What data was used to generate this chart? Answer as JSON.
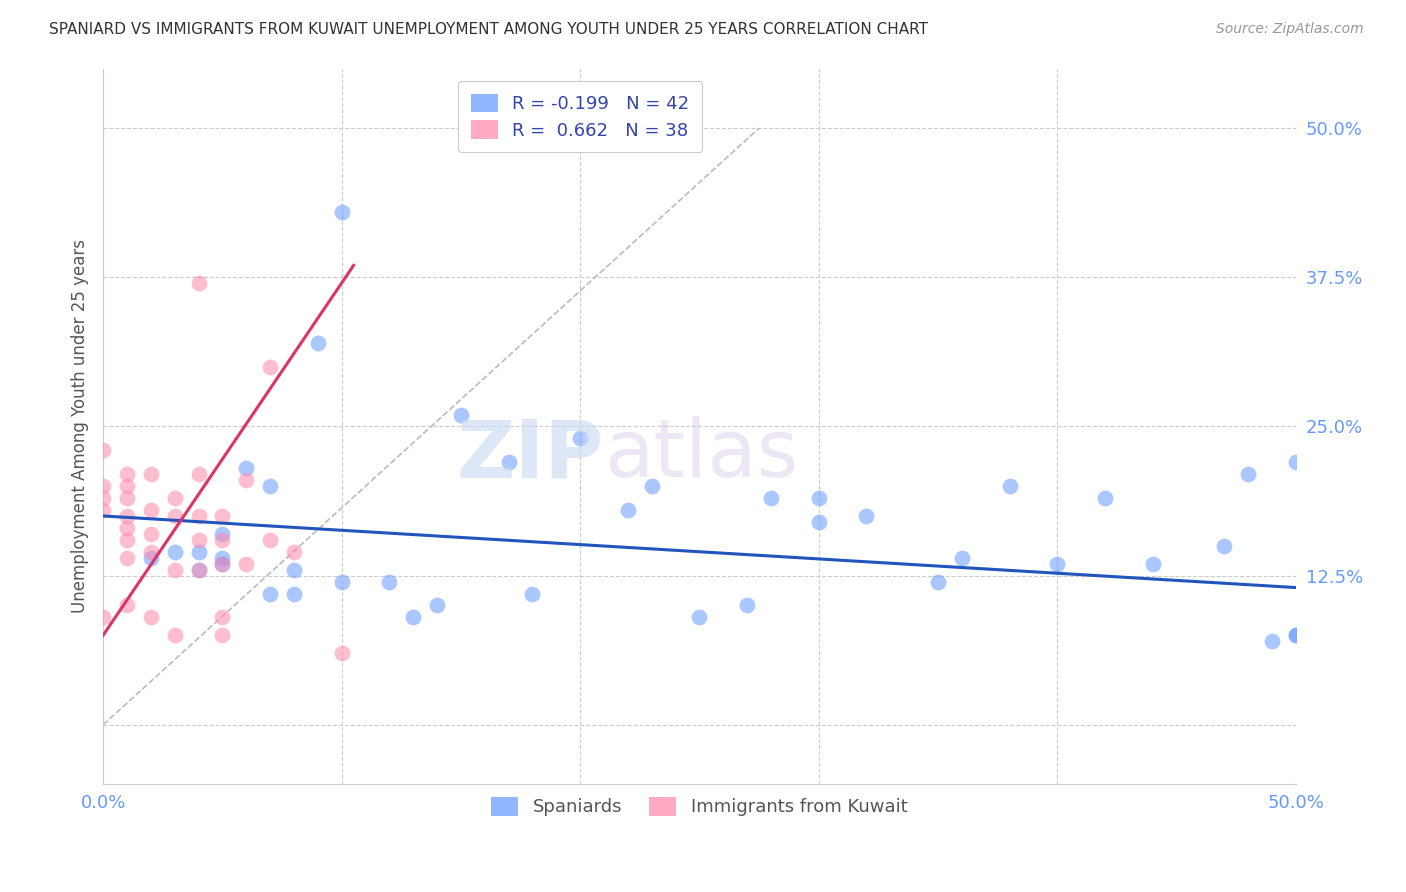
{
  "title": "SPANIARD VS IMMIGRANTS FROM KUWAIT UNEMPLOYMENT AMONG YOUTH UNDER 25 YEARS CORRELATION CHART",
  "source": "Source: ZipAtlas.com",
  "ylabel": "Unemployment Among Youth under 25 years",
  "xlim": [
    0.0,
    0.5
  ],
  "ylim": [
    -0.05,
    0.55
  ],
  "yticks_right": [
    0.0,
    0.125,
    0.25,
    0.375,
    0.5
  ],
  "ytick_labels_right": [
    "",
    "12.5%",
    "25.0%",
    "37.5%",
    "50.0%"
  ],
  "grid_color": "#cccccc",
  "blue_color": "#6699ff",
  "pink_color": "#ff88aa",
  "blue_line_color": "#2255bb",
  "pink_line_color": "#dd3366",
  "legend_R_blue": "-0.199",
  "legend_N_blue": "42",
  "legend_R_pink": "0.662",
  "legend_N_pink": "38",
  "legend_label_blue": "Spaniards",
  "legend_label_pink": "Immigrants from Kuwait",
  "watermark_zip": "ZIP",
  "watermark_atlas": "atlas",
  "blue_scatter_x": [
    0.02,
    0.03,
    0.04,
    0.04,
    0.05,
    0.05,
    0.05,
    0.06,
    0.07,
    0.07,
    0.08,
    0.08,
    0.09,
    0.1,
    0.1,
    0.12,
    0.13,
    0.14,
    0.15,
    0.17,
    0.18,
    0.2,
    0.22,
    0.23,
    0.25,
    0.27,
    0.28,
    0.3,
    0.3,
    0.32,
    0.35,
    0.36,
    0.38,
    0.4,
    0.42,
    0.44,
    0.47,
    0.48,
    0.49,
    0.5,
    0.5,
    0.5
  ],
  "blue_scatter_y": [
    0.14,
    0.145,
    0.13,
    0.145,
    0.135,
    0.16,
    0.14,
    0.215,
    0.11,
    0.2,
    0.13,
    0.11,
    0.32,
    0.12,
    0.43,
    0.12,
    0.09,
    0.1,
    0.26,
    0.22,
    0.11,
    0.24,
    0.18,
    0.2,
    0.09,
    0.1,
    0.19,
    0.19,
    0.17,
    0.175,
    0.12,
    0.14,
    0.2,
    0.135,
    0.19,
    0.135,
    0.15,
    0.21,
    0.07,
    0.22,
    0.075,
    0.075
  ],
  "pink_scatter_x": [
    0.0,
    0.0,
    0.0,
    0.0,
    0.0,
    0.01,
    0.01,
    0.01,
    0.01,
    0.01,
    0.01,
    0.01,
    0.01,
    0.02,
    0.02,
    0.02,
    0.02,
    0.02,
    0.03,
    0.03,
    0.03,
    0.03,
    0.04,
    0.04,
    0.04,
    0.04,
    0.04,
    0.05,
    0.05,
    0.05,
    0.05,
    0.05,
    0.06,
    0.06,
    0.07,
    0.07,
    0.08,
    0.1
  ],
  "pink_scatter_y": [
    0.23,
    0.2,
    0.19,
    0.18,
    0.09,
    0.21,
    0.2,
    0.19,
    0.175,
    0.165,
    0.155,
    0.14,
    0.1,
    0.21,
    0.18,
    0.16,
    0.145,
    0.09,
    0.19,
    0.175,
    0.13,
    0.075,
    0.37,
    0.21,
    0.175,
    0.155,
    0.13,
    0.175,
    0.155,
    0.135,
    0.09,
    0.075,
    0.205,
    0.135,
    0.3,
    0.155,
    0.145,
    0.06
  ],
  "blue_trend_x": [
    0.0,
    0.5
  ],
  "blue_trend_y": [
    0.175,
    0.115
  ],
  "pink_trend_x": [
    0.0,
    0.105
  ],
  "pink_trend_y": [
    0.075,
    0.385
  ],
  "diag_line_x": [
    0.0,
    0.275
  ],
  "diag_line_y": [
    0.0,
    0.5
  ]
}
